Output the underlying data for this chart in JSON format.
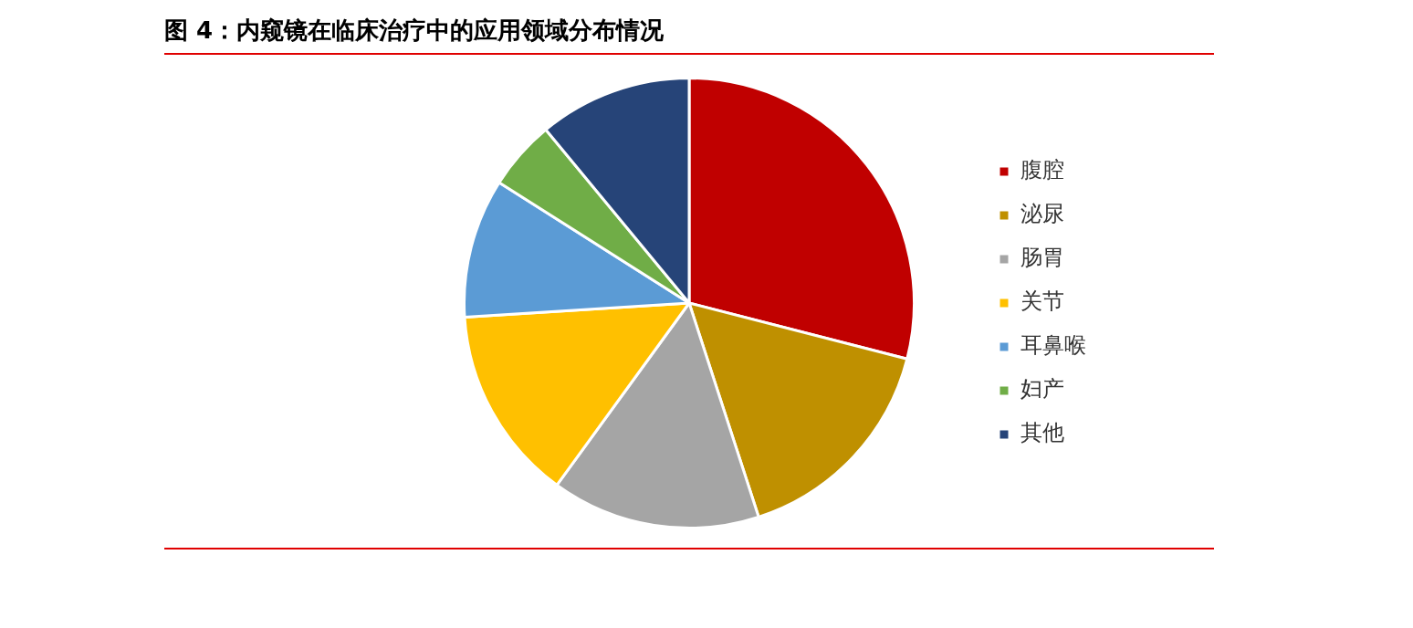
{
  "chart_data": {
    "type": "pie",
    "title": "图 4：内窥镜在临床治疗中的应用领域分布情况",
    "categories": [
      "腹腔",
      "泌尿",
      "肠胃",
      "关节",
      "耳鼻喉",
      "妇产",
      "其他"
    ],
    "values": [
      29,
      16,
      15,
      14,
      10,
      5,
      11
    ],
    "colors": [
      "#c00000",
      "#bf9000",
      "#a5a5a5",
      "#ffc000",
      "#5b9bd5",
      "#70ad47",
      "#264478"
    ],
    "legend": "right"
  }
}
